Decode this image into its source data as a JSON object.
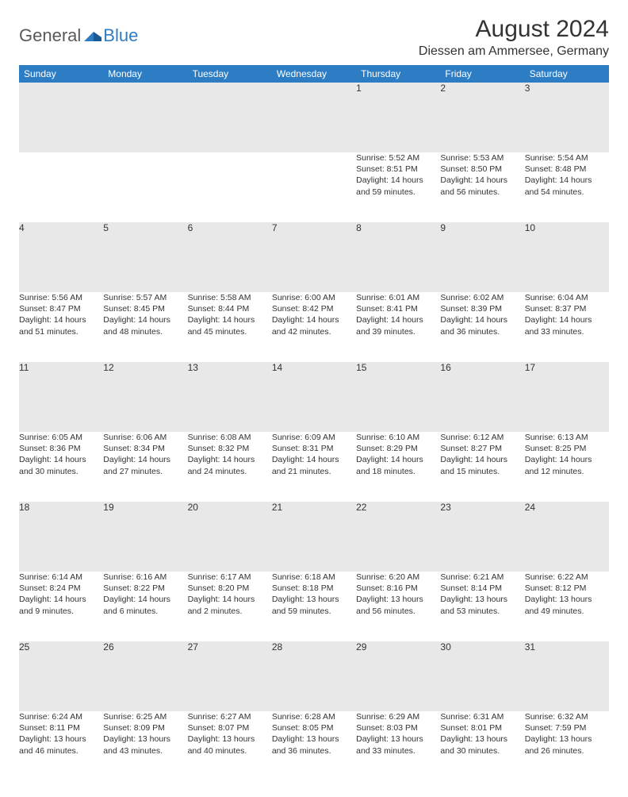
{
  "logo": {
    "text1": "General",
    "text2": "Blue"
  },
  "title": "August 2024",
  "location": "Diessen am Ammersee, Germany",
  "header_bg": "#2d7dc4",
  "header_fg": "#ffffff",
  "daynum_bg": "#e8e8e8",
  "rule_color": "#2d7dc4",
  "weekdays": [
    "Sunday",
    "Monday",
    "Tuesday",
    "Wednesday",
    "Thursday",
    "Friday",
    "Saturday"
  ],
  "weeks": [
    {
      "nums": [
        "",
        "",
        "",
        "",
        "1",
        "2",
        "3"
      ],
      "cells": [
        null,
        null,
        null,
        null,
        {
          "sunrise": "Sunrise: 5:52 AM",
          "sunset": "Sunset: 8:51 PM",
          "day1": "Daylight: 14 hours",
          "day2": "and 59 minutes."
        },
        {
          "sunrise": "Sunrise: 5:53 AM",
          "sunset": "Sunset: 8:50 PM",
          "day1": "Daylight: 14 hours",
          "day2": "and 56 minutes."
        },
        {
          "sunrise": "Sunrise: 5:54 AM",
          "sunset": "Sunset: 8:48 PM",
          "day1": "Daylight: 14 hours",
          "day2": "and 54 minutes."
        }
      ]
    },
    {
      "nums": [
        "4",
        "5",
        "6",
        "7",
        "8",
        "9",
        "10"
      ],
      "cells": [
        {
          "sunrise": "Sunrise: 5:56 AM",
          "sunset": "Sunset: 8:47 PM",
          "day1": "Daylight: 14 hours",
          "day2": "and 51 minutes."
        },
        {
          "sunrise": "Sunrise: 5:57 AM",
          "sunset": "Sunset: 8:45 PM",
          "day1": "Daylight: 14 hours",
          "day2": "and 48 minutes."
        },
        {
          "sunrise": "Sunrise: 5:58 AM",
          "sunset": "Sunset: 8:44 PM",
          "day1": "Daylight: 14 hours",
          "day2": "and 45 minutes."
        },
        {
          "sunrise": "Sunrise: 6:00 AM",
          "sunset": "Sunset: 8:42 PM",
          "day1": "Daylight: 14 hours",
          "day2": "and 42 minutes."
        },
        {
          "sunrise": "Sunrise: 6:01 AM",
          "sunset": "Sunset: 8:41 PM",
          "day1": "Daylight: 14 hours",
          "day2": "and 39 minutes."
        },
        {
          "sunrise": "Sunrise: 6:02 AM",
          "sunset": "Sunset: 8:39 PM",
          "day1": "Daylight: 14 hours",
          "day2": "and 36 minutes."
        },
        {
          "sunrise": "Sunrise: 6:04 AM",
          "sunset": "Sunset: 8:37 PM",
          "day1": "Daylight: 14 hours",
          "day2": "and 33 minutes."
        }
      ]
    },
    {
      "nums": [
        "11",
        "12",
        "13",
        "14",
        "15",
        "16",
        "17"
      ],
      "cells": [
        {
          "sunrise": "Sunrise: 6:05 AM",
          "sunset": "Sunset: 8:36 PM",
          "day1": "Daylight: 14 hours",
          "day2": "and 30 minutes."
        },
        {
          "sunrise": "Sunrise: 6:06 AM",
          "sunset": "Sunset: 8:34 PM",
          "day1": "Daylight: 14 hours",
          "day2": "and 27 minutes."
        },
        {
          "sunrise": "Sunrise: 6:08 AM",
          "sunset": "Sunset: 8:32 PM",
          "day1": "Daylight: 14 hours",
          "day2": "and 24 minutes."
        },
        {
          "sunrise": "Sunrise: 6:09 AM",
          "sunset": "Sunset: 8:31 PM",
          "day1": "Daylight: 14 hours",
          "day2": "and 21 minutes."
        },
        {
          "sunrise": "Sunrise: 6:10 AM",
          "sunset": "Sunset: 8:29 PM",
          "day1": "Daylight: 14 hours",
          "day2": "and 18 minutes."
        },
        {
          "sunrise": "Sunrise: 6:12 AM",
          "sunset": "Sunset: 8:27 PM",
          "day1": "Daylight: 14 hours",
          "day2": "and 15 minutes."
        },
        {
          "sunrise": "Sunrise: 6:13 AM",
          "sunset": "Sunset: 8:25 PM",
          "day1": "Daylight: 14 hours",
          "day2": "and 12 minutes."
        }
      ]
    },
    {
      "nums": [
        "18",
        "19",
        "20",
        "21",
        "22",
        "23",
        "24"
      ],
      "cells": [
        {
          "sunrise": "Sunrise: 6:14 AM",
          "sunset": "Sunset: 8:24 PM",
          "day1": "Daylight: 14 hours",
          "day2": "and 9 minutes."
        },
        {
          "sunrise": "Sunrise: 6:16 AM",
          "sunset": "Sunset: 8:22 PM",
          "day1": "Daylight: 14 hours",
          "day2": "and 6 minutes."
        },
        {
          "sunrise": "Sunrise: 6:17 AM",
          "sunset": "Sunset: 8:20 PM",
          "day1": "Daylight: 14 hours",
          "day2": "and 2 minutes."
        },
        {
          "sunrise": "Sunrise: 6:18 AM",
          "sunset": "Sunset: 8:18 PM",
          "day1": "Daylight: 13 hours",
          "day2": "and 59 minutes."
        },
        {
          "sunrise": "Sunrise: 6:20 AM",
          "sunset": "Sunset: 8:16 PM",
          "day1": "Daylight: 13 hours",
          "day2": "and 56 minutes."
        },
        {
          "sunrise": "Sunrise: 6:21 AM",
          "sunset": "Sunset: 8:14 PM",
          "day1": "Daylight: 13 hours",
          "day2": "and 53 minutes."
        },
        {
          "sunrise": "Sunrise: 6:22 AM",
          "sunset": "Sunset: 8:12 PM",
          "day1": "Daylight: 13 hours",
          "day2": "and 49 minutes."
        }
      ]
    },
    {
      "nums": [
        "25",
        "26",
        "27",
        "28",
        "29",
        "30",
        "31"
      ],
      "cells": [
        {
          "sunrise": "Sunrise: 6:24 AM",
          "sunset": "Sunset: 8:11 PM",
          "day1": "Daylight: 13 hours",
          "day2": "and 46 minutes."
        },
        {
          "sunrise": "Sunrise: 6:25 AM",
          "sunset": "Sunset: 8:09 PM",
          "day1": "Daylight: 13 hours",
          "day2": "and 43 minutes."
        },
        {
          "sunrise": "Sunrise: 6:27 AM",
          "sunset": "Sunset: 8:07 PM",
          "day1": "Daylight: 13 hours",
          "day2": "and 40 minutes."
        },
        {
          "sunrise": "Sunrise: 6:28 AM",
          "sunset": "Sunset: 8:05 PM",
          "day1": "Daylight: 13 hours",
          "day2": "and 36 minutes."
        },
        {
          "sunrise": "Sunrise: 6:29 AM",
          "sunset": "Sunset: 8:03 PM",
          "day1": "Daylight: 13 hours",
          "day2": "and 33 minutes."
        },
        {
          "sunrise": "Sunrise: 6:31 AM",
          "sunset": "Sunset: 8:01 PM",
          "day1": "Daylight: 13 hours",
          "day2": "and 30 minutes."
        },
        {
          "sunrise": "Sunrise: 6:32 AM",
          "sunset": "Sunset: 7:59 PM",
          "day1": "Daylight: 13 hours",
          "day2": "and 26 minutes."
        }
      ]
    }
  ]
}
